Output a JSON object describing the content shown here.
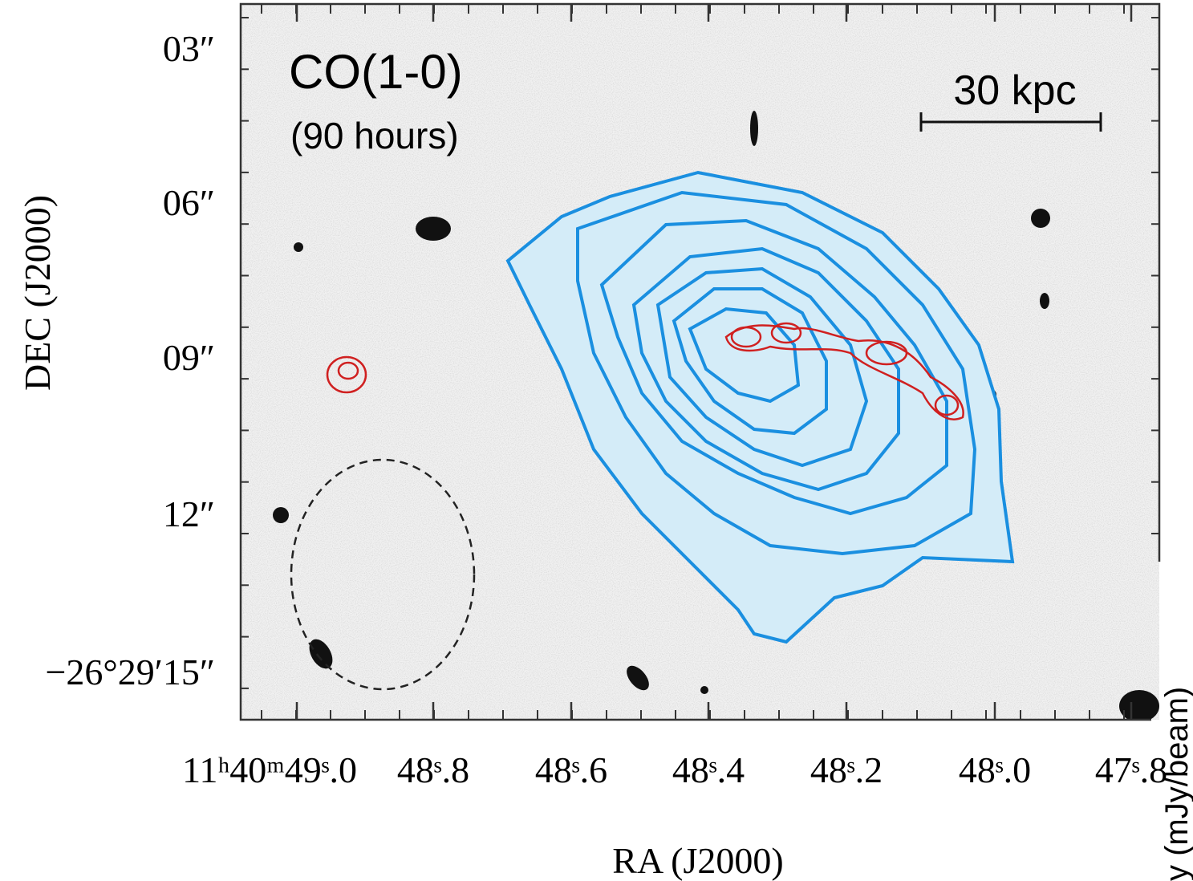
{
  "figure": {
    "label": "CO(1-0)",
    "sublabel": "(90 hours)",
    "scale_bar": "30 kpc",
    "y_axis": {
      "title": "DEC  (J2000)",
      "ticks": [
        "03″",
        "06″",
        "09″",
        "12″",
        "−26°29′15″"
      ]
    },
    "x_axis": {
      "title": "RA  (J2000)",
      "ticks": [
        "11ʰ40ᵐ49ˢ.0",
        "48ˢ.8",
        "48ˢ.6",
        "48ˢ.4",
        "48ˢ.2",
        "48ˢ.0",
        "47ˢ.8"
      ]
    },
    "colorbar_label": "y (mJy/beam)"
  }
}
